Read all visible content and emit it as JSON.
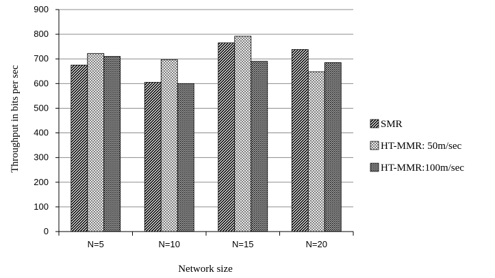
{
  "chart_data": {
    "type": "bar",
    "title": "",
    "xlabel": "Network size",
    "ylabel": "Throughput in bits per sec",
    "categories": [
      "N=5",
      "N=10",
      "N=15",
      "N=20"
    ],
    "ylim": [
      0,
      900
    ],
    "yticks": [
      0,
      100,
      200,
      300,
      400,
      500,
      600,
      700,
      800,
      900
    ],
    "grid": true,
    "legend_position": "right",
    "series": [
      {
        "name": "SMR",
        "pattern": "dense-diagonal-dark",
        "values": [
          675,
          605,
          765,
          738
        ]
      },
      {
        "name": "HT-MMR: 50m/sec",
        "pattern": "light-crosshatch",
        "values": [
          722,
          697,
          792,
          648
        ]
      },
      {
        "name": "HT-MMR:100m/sec",
        "pattern": "dark-crosshatch",
        "values": [
          710,
          600,
          690,
          685
        ]
      }
    ]
  }
}
